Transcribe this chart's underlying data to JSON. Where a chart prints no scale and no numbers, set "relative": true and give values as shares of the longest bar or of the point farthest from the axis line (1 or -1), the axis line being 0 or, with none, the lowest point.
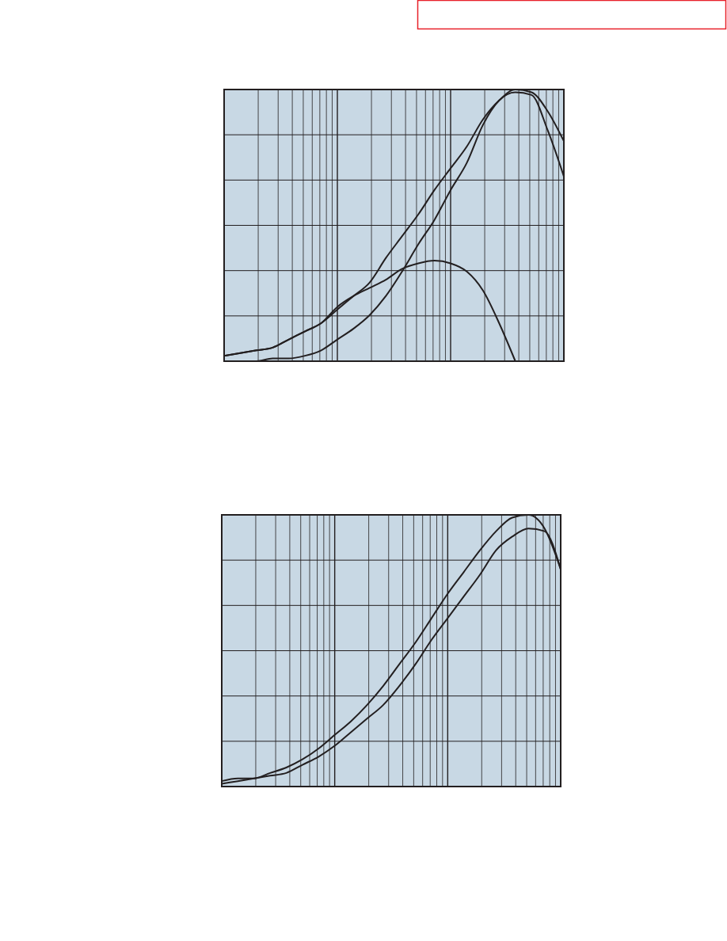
{
  "chart_data": [
    {
      "type": "line",
      "relative": true,
      "grid": true,
      "categories": [
        null,
        null,
        null,
        null,
        null,
        null,
        null,
        null,
        null,
        null,
        null,
        null,
        null,
        null,
        null,
        null,
        null,
        null,
        null,
        null,
        null,
        null
      ],
      "series": [
        {
          "color": "#231f20",
          "values": [
            0.02,
            0.03,
            0.04,
            0.05,
            0.08,
            0.11,
            0.14,
            0.19,
            0.24,
            0.29,
            0.38,
            0.46,
            0.54,
            0.63,
            0.71,
            0.79,
            0.89,
            0.96,
            1.0,
            0.99,
            0.92,
            0.81
          ]
        },
        {
          "color": "#231f20",
          "values": [
            0.0,
            0.0,
            0.0,
            0.01,
            0.01,
            0.02,
            0.04,
            0.08,
            0.12,
            0.17,
            0.24,
            0.33,
            0.43,
            0.52,
            0.63,
            0.73,
            0.87,
            0.96,
            0.99,
            0.98,
            0.85,
            0.68
          ]
        },
        {
          "color": "#231f20",
          "values": [
            0.02,
            0.03,
            0.04,
            0.05,
            0.08,
            0.11,
            0.14,
            0.2,
            0.24,
            0.27,
            0.3,
            0.34,
            0.36,
            0.37,
            0.36,
            0.33,
            0.26,
            0.14,
            0.0,
            null,
            null,
            null
          ]
        }
      ]
    },
    {
      "type": "line",
      "relative": true,
      "grid": true,
      "categories": [
        null,
        null,
        null,
        null,
        null,
        null,
        null,
        null,
        null,
        null,
        null,
        null,
        null,
        null,
        null,
        null,
        null,
        null,
        null,
        null,
        null,
        null
      ],
      "series": [
        {
          "color": "#231f20",
          "values": [
            0.02,
            0.03,
            0.03,
            0.05,
            0.07,
            0.1,
            0.14,
            0.19,
            0.24,
            0.3,
            0.37,
            0.45,
            0.53,
            0.62,
            0.71,
            0.79,
            0.87,
            0.94,
            0.99,
            1.0,
            0.95,
            0.8
          ]
        },
        {
          "color": "#231f20",
          "values": [
            0.01,
            0.02,
            0.03,
            0.04,
            0.05,
            0.08,
            0.11,
            0.15,
            0.2,
            0.25,
            0.3,
            0.37,
            0.45,
            0.54,
            0.62,
            0.7,
            0.78,
            0.87,
            0.92,
            0.95,
            0.94,
            0.8
          ]
        }
      ]
    }
  ]
}
